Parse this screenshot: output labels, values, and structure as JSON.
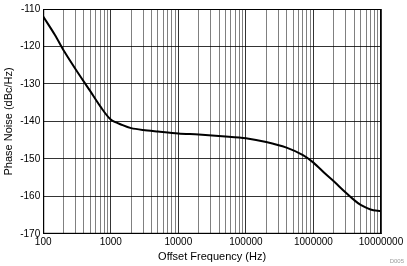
{
  "chart_data": {
    "type": "line",
    "x_label": "Offset Frequency (Hz)",
    "y_label": "Phase Noise (dBc/Hz)",
    "annotation": "D005",
    "log": "x",
    "grid": true,
    "color": "#000000",
    "x": [
      100,
      150,
      200,
      300,
      500,
      700,
      1000,
      1500,
      2000,
      3000,
      5000,
      10000,
      20000,
      50000,
      100000,
      200000,
      400000,
      700000,
      1000000,
      1500000,
      2000000,
      3000000,
      4000000,
      5000000,
      7000000,
      10000000
    ],
    "values": [
      -112,
      -117,
      -121,
      -126,
      -132,
      -136,
      -139.5,
      -141,
      -141.8,
      -142.3,
      -142.7,
      -143.2,
      -143.5,
      -144,
      -144.5,
      -145.5,
      -147,
      -149,
      -151,
      -154,
      -156,
      -159,
      -161,
      -162.3,
      -163.5,
      -164
    ],
    "xlim": [
      100,
      10000000
    ],
    "xticks": [
      100,
      1000,
      10000,
      100000,
      1000000,
      10000000
    ],
    "ylim": [
      -170,
      -110
    ],
    "yticks": [
      -170,
      -160,
      -150,
      -140,
      -130,
      -120,
      -110
    ]
  }
}
